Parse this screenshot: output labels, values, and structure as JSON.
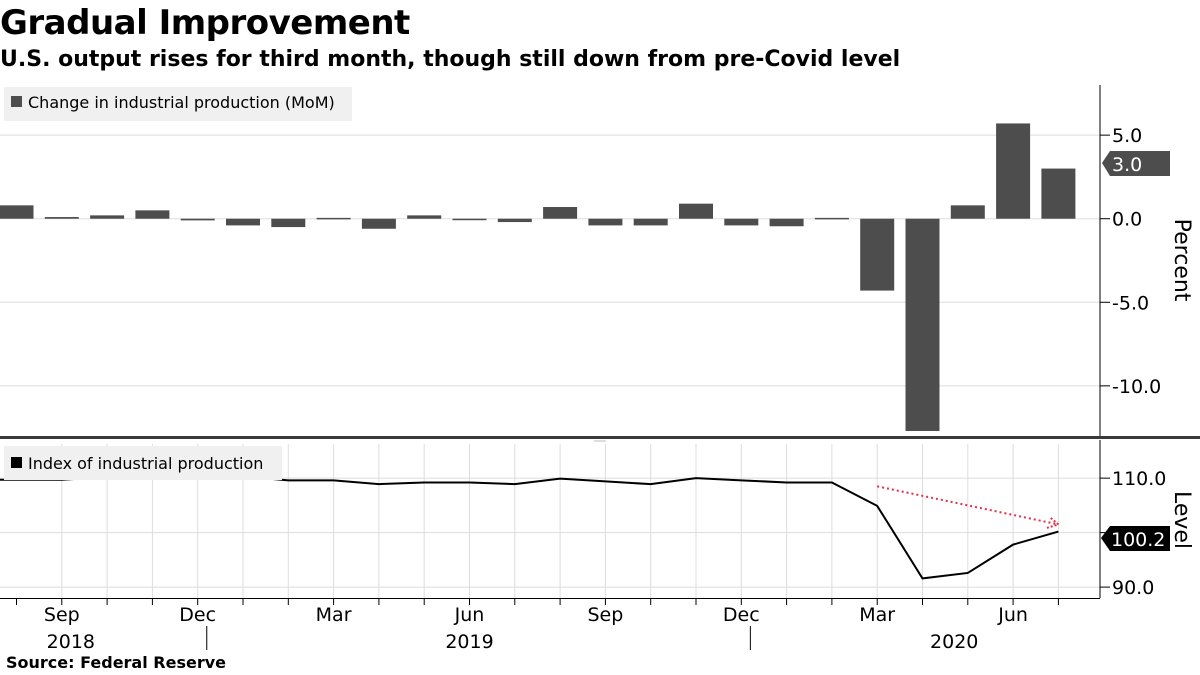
{
  "title": "Gradual Improvement",
  "subtitle": "U.S. output rises for third month, though still down from pre-Covid level",
  "source": "Source: Federal Reserve",
  "colors": {
    "bar": "#4d4d4d",
    "line": "#000000",
    "arrow": "#e0304a",
    "grid": "#dddddd"
  },
  "chart_data": [
    {
      "type": "bar",
      "title": "",
      "legend": "Change in industrial production (MoM)",
      "ylabel": "Percent",
      "ylim": [
        -13,
        8
      ],
      "yticks": [
        5,
        0,
        -5,
        -10
      ],
      "ytick_labels": [
        "5.0",
        "0.0",
        "-5.0",
        "-10.0"
      ],
      "categories": [
        "2018-08",
        "2018-09",
        "2018-10",
        "2018-11",
        "2018-12",
        "2019-01",
        "2019-02",
        "2019-03",
        "2019-04",
        "2019-05",
        "2019-06",
        "2019-07",
        "2019-08",
        "2019-09",
        "2019-10",
        "2019-11",
        "2019-12",
        "2020-01",
        "2020-02",
        "2020-03",
        "2020-04",
        "2020-05",
        "2020-06",
        "2020-07"
      ],
      "values": [
        0.8,
        0.1,
        0.2,
        0.5,
        -0.1,
        -0.4,
        -0.5,
        0.05,
        -0.6,
        0.2,
        -0.05,
        -0.2,
        0.7,
        -0.4,
        -0.4,
        0.9,
        -0.4,
        -0.45,
        0.05,
        -4.3,
        -12.7,
        0.8,
        5.7,
        3.0
      ],
      "last_value_label": "3.0"
    },
    {
      "type": "line",
      "title": "",
      "legend": "Index of industrial production",
      "ylabel": "Level",
      "ylim": [
        88,
        117
      ],
      "yticks": [
        110,
        100,
        90
      ],
      "ytick_labels": [
        "110.0",
        "100.0",
        "90.0"
      ],
      "categories": [
        "2018-08",
        "2018-09",
        "2018-10",
        "2018-11",
        "2018-12",
        "2019-01",
        "2019-02",
        "2019-03",
        "2019-04",
        "2019-05",
        "2019-06",
        "2019-07",
        "2019-08",
        "2019-09",
        "2019-10",
        "2019-11",
        "2019-12",
        "2020-01",
        "2020-02",
        "2020-03",
        "2020-04",
        "2020-05",
        "2020-06",
        "2020-07"
      ],
      "values": [
        109.7,
        109.7,
        110.2,
        110.7,
        110.7,
        110.3,
        109.6,
        109.6,
        108.9,
        109.2,
        109.2,
        108.9,
        109.9,
        109.4,
        108.9,
        110.0,
        109.6,
        109.2,
        109.2,
        104.9,
        91.6,
        92.6,
        97.8,
        100.2
      ],
      "last_value_label": "100.2",
      "annotation": {
        "type": "arrow",
        "from": [
          "2020-03",
          108.5
        ],
        "to": [
          "2020-07",
          101.5
        ]
      }
    }
  ],
  "x_axis": {
    "month_ticks": [
      {
        "label": "Sep",
        "index": 1
      },
      {
        "label": "Dec",
        "index": 4
      },
      {
        "label": "Mar",
        "index": 7
      },
      {
        "label": "Jun",
        "index": 10
      },
      {
        "label": "Sep",
        "index": 13
      },
      {
        "label": "Dec",
        "index": 16
      },
      {
        "label": "Mar",
        "index": 19
      },
      {
        "label": "Jun",
        "index": 22
      }
    ],
    "years": [
      {
        "label": "2018",
        "center": 1.2
      },
      {
        "label": "2019",
        "center": 10
      },
      {
        "label": "2020",
        "center": 20.7
      }
    ],
    "year_separators": [
      4.2,
      16.2
    ]
  }
}
